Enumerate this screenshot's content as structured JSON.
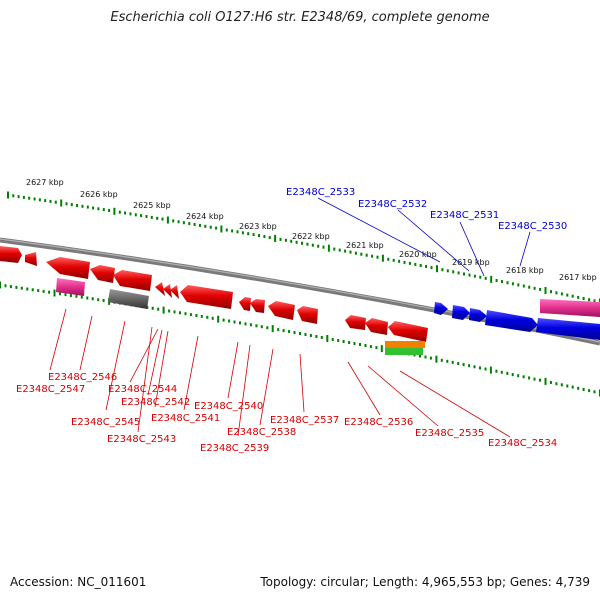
{
  "title": "Escherichia coli O127:H6 str. E2348/69, complete genome",
  "accession": "Accession: NC_011601",
  "stats": "Topology: circular; Length: 4,965,553 bp; Genes: 4,739",
  "scale_labels": [
    "2627 kbp",
    "2626 kbp",
    "2625 kbp",
    "2624 kbp",
    "2623 kbp",
    "2622 kbp",
    "2621 kbp",
    "2620 kbp",
    "2619 kbp",
    "2618 kbp",
    "2617 kbp"
  ],
  "gene_labels_red": [
    "E2348C_2546",
    "E2348C_2547",
    "E2348C_2544",
    "E2348C_2542",
    "E2348C_2545",
    "E2348C_2541",
    "E2348C_2543",
    "E2348C_2540",
    "E2348C_2538",
    "E2348C_2539",
    "E2348C_2537",
    "E2348C_2536",
    "E2348C_2535",
    "E2348C_2534"
  ],
  "gene_labels_blue": [
    "E2348C_2533",
    "E2348C_2532",
    "E2348C_2531",
    "E2348C_2530"
  ],
  "colors": {
    "forward": "#0000e0",
    "reverse": "#e00000",
    "backbone": "#808080",
    "ticks": "#008000",
    "pink": "#e0308a",
    "gray_gene": "#666666",
    "orange": "#f08000",
    "green": "#30c030"
  }
}
